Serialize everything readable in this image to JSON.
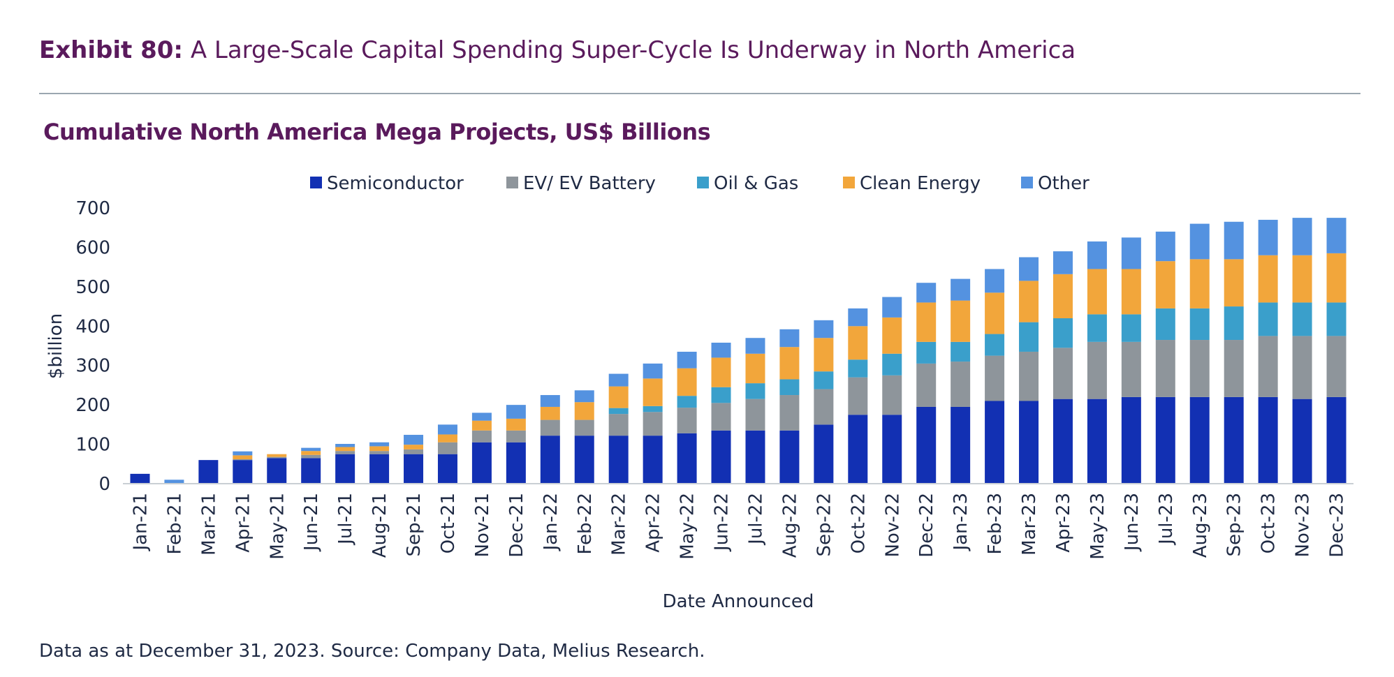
{
  "header": {
    "exhibit_label": "Exhibit 80:",
    "exhibit_title": " A Large-Scale Capital Spending Super-Cycle Is Underway in North America"
  },
  "footnote": "Data as at December 31, 2023. Source: Company Data, Melius Research.",
  "colors": {
    "title": "#5a1a5c",
    "text": "#1f2a44",
    "Semiconductor": "#1230b3",
    "EV/ EV Battery": "#8e959b",
    "Oil & Gas": "#3a9fcb",
    "Clean Energy": "#f2a63b",
    "Other": "#5492e0"
  },
  "chart_data": {
    "type": "bar",
    "stacked": true,
    "title": "Cumulative North America Mega Projects, US$ Billions",
    "xlabel": "Date Announced",
    "ylabel": "$billion",
    "ylim": [
      0,
      700
    ],
    "yticks": [
      0,
      100,
      200,
      300,
      400,
      500,
      600,
      700
    ],
    "legend_position": "top-center",
    "categories": [
      "Jan-21",
      "Feb-21",
      "Mar-21",
      "Apr-21",
      "May-21",
      "Jun-21",
      "Jul-21",
      "Aug-21",
      "Sep-21",
      "Oct-21",
      "Nov-21",
      "Dec-21",
      "Jan-22",
      "Feb-22",
      "Mar-22",
      "Apr-22",
      "May-22",
      "Jun-22",
      "Jul-22",
      "Aug-22",
      "Sep-22",
      "Oct-22",
      "Nov-22",
      "Dec-22",
      "Jan-23",
      "Feb-23",
      "Mar-23",
      "Apr-23",
      "May-23",
      "Jun-23",
      "Jul-23",
      "Aug-23",
      "Sep-23",
      "Oct-23",
      "Nov-23",
      "Dec-23"
    ],
    "series": [
      {
        "name": "Semiconductor",
        "values": [
          25,
          0,
          60,
          60,
          65,
          65,
          75,
          75,
          75,
          75,
          105,
          105,
          122,
          122,
          122,
          122,
          128,
          135,
          135,
          135,
          150,
          175,
          175,
          195,
          195,
          210,
          210,
          215,
          215,
          220,
          220,
          220,
          220,
          220,
          215,
          220
        ]
      },
      {
        "name": "EV/ EV Battery",
        "values": [
          0,
          0,
          0,
          2,
          3,
          8,
          8,
          8,
          12,
          30,
          30,
          30,
          40,
          40,
          55,
          60,
          65,
          70,
          80,
          90,
          90,
          95,
          100,
          110,
          115,
          115,
          125,
          130,
          145,
          140,
          145,
          145,
          145,
          155,
          160,
          155
        ]
      },
      {
        "name": "Oil & Gas",
        "values": [
          0,
          0,
          0,
          0,
          0,
          0,
          0,
          0,
          0,
          0,
          0,
          0,
          0,
          0,
          15,
          15,
          30,
          40,
          40,
          40,
          45,
          45,
          55,
          55,
          50,
          55,
          75,
          75,
          70,
          70,
          80,
          80,
          85,
          85,
          85,
          85
        ]
      },
      {
        "name": "Clean Energy",
        "values": [
          0,
          0,
          0,
          10,
          7,
          10,
          10,
          12,
          12,
          20,
          25,
          30,
          33,
          45,
          55,
          70,
          70,
          75,
          75,
          82,
          85,
          85,
          92,
          100,
          105,
          105,
          105,
          112,
          115,
          115,
          120,
          125,
          120,
          120,
          120,
          125
        ]
      },
      {
        "name": "Other",
        "values": [
          0,
          10,
          0,
          10,
          0,
          8,
          8,
          10,
          25,
          25,
          20,
          35,
          30,
          30,
          32,
          38,
          42,
          38,
          40,
          45,
          45,
          45,
          52,
          50,
          55,
          60,
          60,
          58,
          70,
          80,
          75,
          90,
          95,
          90,
          95,
          90
        ]
      }
    ]
  }
}
